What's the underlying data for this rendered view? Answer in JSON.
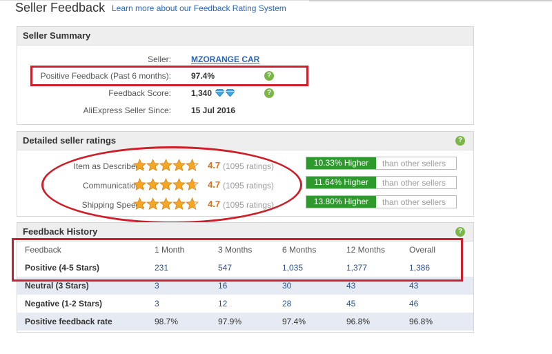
{
  "header": {
    "title": "Seller Feedback",
    "learn_link": "Learn more about our Feedback Rating System"
  },
  "summary": {
    "heading": "Seller Summary",
    "seller_label": "Seller:",
    "seller_value": "MZORANGE CAR",
    "positive_label": "Positive Feedback (Past 6 months):",
    "positive_value": "97.4%",
    "score_label": "Feedback Score:",
    "score_value": "1,340",
    "since_label": "AliExpress Seller Since:",
    "since_value": "15 Jul 2016"
  },
  "ratings": {
    "heading": "Detailed seller ratings",
    "rows": [
      {
        "label": "Item as Described :",
        "score": "4.7",
        "count": "(1095 ratings)",
        "badge": "10.33% Higher",
        "compare": "than other sellers",
        "stars": 4.7
      },
      {
        "label": "Communication :",
        "score": "4.7",
        "count": "(1095 ratings)",
        "badge": "11.64% Higher",
        "compare": "than other sellers",
        "stars": 4.7
      },
      {
        "label": "Shipping Speed :",
        "score": "4.7",
        "count": "(1095 ratings)",
        "badge": "13.80% Higher",
        "compare": "than other sellers",
        "stars": 4.7
      }
    ]
  },
  "history": {
    "heading": "Feedback History",
    "columns": [
      "Feedback",
      "1 Month",
      "3 Months",
      "6 Months",
      "12 Months",
      "Overall"
    ],
    "rows": [
      {
        "label": "Positive (4-5 Stars)",
        "values": [
          "231",
          "547",
          "1,035",
          "1,377",
          "1,386"
        ]
      },
      {
        "label": "Neutral (3 Stars)",
        "values": [
          "3",
          "16",
          "30",
          "43",
          "43"
        ]
      },
      {
        "label": "Negative (1-2 Stars)",
        "values": [
          "3",
          "12",
          "28",
          "45",
          "46"
        ]
      },
      {
        "label": "Positive feedback rate",
        "values": [
          "98.7%",
          "97.9%",
          "97.4%",
          "96.8%",
          "96.8%"
        ]
      }
    ]
  },
  "colors": {
    "link": "#2a66b8",
    "accent_orange": "#e07018",
    "badge_green": "#2e9a2e",
    "highlight_red": "#cc1f2a"
  },
  "icons": [
    "help-icon",
    "diamond-icon",
    "star-icon"
  ]
}
